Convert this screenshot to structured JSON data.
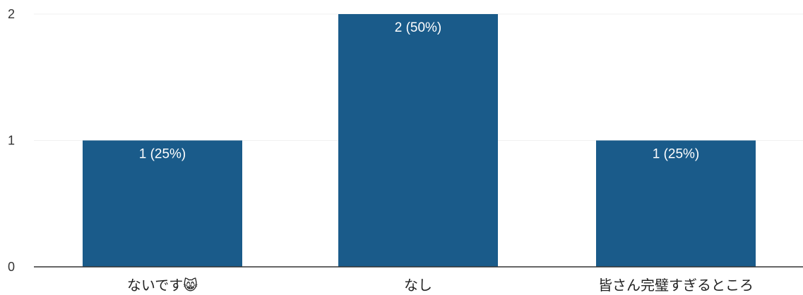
{
  "chart_data": {
    "type": "bar",
    "categories": [
      "ないです😸",
      "なし",
      "皆さん完璧すぎるところ"
    ],
    "values": [
      1,
      2,
      1
    ],
    "data_labels": [
      "1 (25%)",
      "2 (50%)",
      "1 (25%)"
    ],
    "y_ticks": [
      "0",
      "1",
      "2"
    ],
    "title": "",
    "xlabel": "",
    "ylabel": "",
    "ylim": [
      0,
      2
    ],
    "grid": true,
    "bar_color": "#1a5b8a"
  }
}
